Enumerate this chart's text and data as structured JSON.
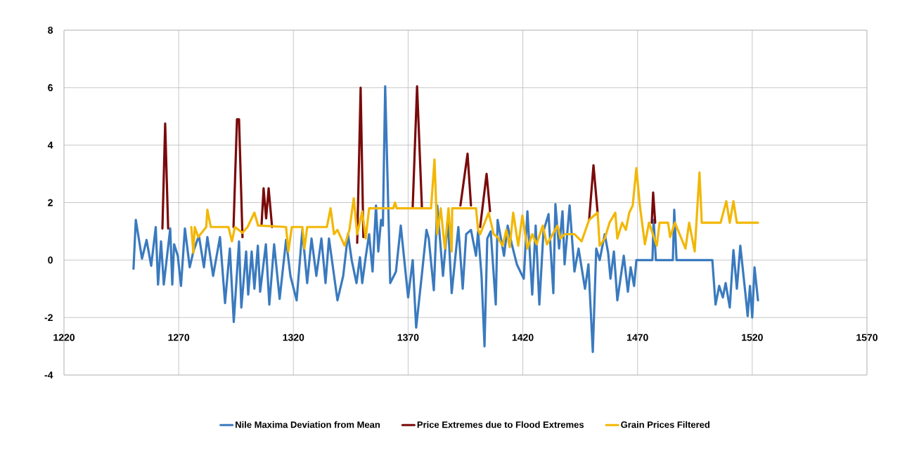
{
  "chart_data": {
    "type": "line",
    "xlim": [
      1220,
      1570
    ],
    "ylim": [
      -4,
      8
    ],
    "xticks": [
      1220,
      1270,
      1320,
      1370,
      1420,
      1470,
      1520,
      1570
    ],
    "yticks": [
      -4,
      -2,
      0,
      2,
      4,
      6,
      8
    ],
    "grid": true,
    "legend": "bottom",
    "series": [
      {
        "name": "Nile Maxima Deviation from Mean",
        "color": "#3a7abf",
        "x": [
          1250.3,
          1251.3,
          1254,
          1256,
          1258,
          1260,
          1261,
          1262.3,
          1263.5,
          1266.3,
          1267.2,
          1268,
          1269.6,
          1271,
          1272.7,
          1274.8,
          1276.4,
          1278.8,
          1281,
          1282.5,
          1285,
          1288,
          1290.2,
          1292.3,
          1294,
          1296.3,
          1297.3,
          1299.4,
          1300.3,
          1301.8,
          1303,
          1304.5,
          1305.5,
          1308,
          1309.5,
          1311.6,
          1314,
          1316.8,
          1318.7,
          1321.4,
          1323.9,
          1326,
          1327.9,
          1330,
          1332.2,
          1334,
          1335.5,
          1339.2,
          1341.7,
          1343.8,
          1345.4,
          1347.5,
          1349,
          1350,
          1351.5,
          1353,
          1354.5,
          1356,
          1357,
          1358.2,
          1359,
          1360,
          1362.2,
          1364.7,
          1366.8,
          1370,
          1372,
          1373.5,
          1376,
          1378,
          1379,
          1381.2,
          1382.7,
          1385.2,
          1387.3,
          1389,
          1391.9,
          1393.8,
          1395.3,
          1397.4,
          1399.6,
          1400.5,
          1402,
          1403.3,
          1404.5,
          1406,
          1408.2,
          1409,
          1411.8,
          1413.4,
          1415.2,
          1417.4,
          1418.9,
          1420.4,
          1422,
          1424.1,
          1425.6,
          1427.2,
          1429,
          1431.2,
          1433.3,
          1434.2,
          1435.8,
          1437.3,
          1438.2,
          1440.4,
          1442.5,
          1444.3,
          1447.1,
          1448.6,
          1450.5,
          1452,
          1453.5,
          1455.7,
          1457.2,
          1458.2,
          1459.7,
          1461.2,
          1464,
          1465.8,
          1467,
          1468.5,
          1469.5,
          1476.5,
          1477,
          1478,
          1485.4,
          1486,
          1487,
          1502.6,
          1504,
          1505.6,
          1507.2,
          1508.4,
          1510.2,
          1511.8,
          1513.3,
          1514.8,
          1517,
          1518,
          1519,
          1520,
          1521,
          1522.5
        ],
        "values": [
          -0.3,
          1.4,
          0.05,
          0.7,
          -0.2,
          1.15,
          -0.85,
          0.65,
          -0.85,
          1.1,
          -0.85,
          0.55,
          0.15,
          -0.9,
          1.1,
          -0.25,
          0.3,
          0.85,
          -0.25,
          0.8,
          -0.55,
          0.8,
          -1.5,
          0.4,
          -2.15,
          0.65,
          -1.65,
          0.3,
          -1.2,
          0.3,
          -1,
          0.5,
          -1.1,
          0.55,
          -1.55,
          0.55,
          -1.35,
          0.7,
          -0.55,
          -1.4,
          1.05,
          -0.8,
          0.75,
          -0.55,
          0.75,
          -0.8,
          0.75,
          -1.4,
          -0.55,
          0.9,
          0,
          -0.8,
          0.1,
          -0.8,
          0.1,
          0.9,
          -0.4,
          1.9,
          0.3,
          1.4,
          1.2,
          6.05,
          -0.8,
          -0.4,
          1.2,
          -1.3,
          0,
          -2.35,
          -0.5,
          1.05,
          0.75,
          -1.05,
          1.9,
          -0.55,
          1.4,
          -1.15,
          1.15,
          -1,
          0.9,
          1.05,
          0.15,
          1,
          -0.55,
          -3,
          0.75,
          1,
          -1.55,
          1.4,
          0.15,
          1.2,
          0.55,
          -0.15,
          -0.4,
          -0.65,
          1.7,
          -1.2,
          1.2,
          -1.55,
          1,
          1.6,
          -1.15,
          1.95,
          0.4,
          1.7,
          -0.15,
          1.9,
          -0.4,
          0.4,
          -1,
          -0.15,
          -3.2,
          0.4,
          0,
          0.9,
          0.25,
          -0.65,
          0.3,
          -1.4,
          0.15,
          -1.1,
          -0.25,
          -0.9,
          0,
          0,
          1.4,
          0,
          0,
          1.75,
          0,
          0,
          -1.55,
          -0.9,
          -1.3,
          -0.8,
          -1.65,
          0.35,
          -1,
          0.5,
          -1.15,
          -1.95,
          -0.9,
          -2,
          -0.25,
          -1.4
        ]
      },
      {
        "name": "Price Extremes due to Flood Extremes",
        "color": "#7a0a0a",
        "x": [
          1262.9,
          1264.1,
          1265.4,
          1280,
          1293.9,
          1295.4,
          1296.3,
          1297.8,
          1300,
          1306.1,
          1307,
          1308.1,
          1309.2,
          1310.7,
          1330,
          1347.8,
          1349.3,
          1350.5,
          1360,
          1372,
          1373.9,
          1376,
          1385,
          1392.8,
          1395.9,
          1397.4,
          1399,
          1401.4,
          1404.2,
          1405.7,
          1430,
          1448.9,
          1450.8,
          1452.6,
          1465,
          1476.2,
          1476.8,
          1477.7
        ],
        "values": [
          1.1,
          4.75,
          1.1,
          null,
          1.15,
          4.9,
          4.9,
          0.8,
          null,
          1.2,
          2.5,
          1.45,
          2.5,
          1.15,
          null,
          0.6,
          6,
          0.8,
          null,
          1.85,
          6.05,
          1.85,
          null,
          1.9,
          3.7,
          1.9,
          null,
          1.15,
          3,
          1.7,
          null,
          1.4,
          3.3,
          1.65,
          null,
          1.3,
          2.35,
          1.3
        ]
      },
      {
        "name": "Grain Prices Filtered",
        "color": "#f2b705",
        "x": [
          1275.5,
          1276.4,
          1277,
          1278.5,
          1282,
          1282.5,
          1284,
          1291.7,
          1293.2,
          1294.5,
          1297.8,
          1300,
          1303,
          1304.6,
          1316.8,
          1317.8,
          1319.3,
          1323.9,
          1324.8,
          1326,
          1334.6,
          1336.2,
          1337.7,
          1339.2,
          1342.3,
          1344.4,
          1346.3,
          1347.8,
          1350,
          1351.5,
          1353,
          1354,
          1363.5,
          1364.3,
          1365,
          1380,
          1381.5,
          1382.7,
          1384.2,
          1386,
          1387.6,
          1389,
          1389.2,
          1399.6,
          1400.5,
          1401.4,
          1405.1,
          1407.3,
          1409,
          1411.2,
          1412.8,
          1414.3,
          1415.8,
          1418,
          1419.8,
          1422,
          1424.1,
          1426,
          1428.7,
          1430.5,
          1432,
          1435.1,
          1436.4,
          1438.2,
          1442.5,
          1445.6,
          1448.9,
          1452.6,
          1453.5,
          1455.7,
          1457.8,
          1460.3,
          1461.2,
          1463.3,
          1464.9,
          1466.4,
          1467.9,
          1469.5,
          1471,
          1473.2,
          1475,
          1478.4,
          1479.6,
          1483.3,
          1484.2,
          1486.3,
          1490.9,
          1492.5,
          1494.9,
          1497,
          1498,
          1506.2,
          1508.7,
          1510.2,
          1511.8,
          1513.3,
          1522.5
        ],
        "values": [
          1.15,
          0.25,
          1.15,
          0.8,
          1.15,
          1.75,
          1.15,
          1.15,
          0.65,
          1.15,
          0.95,
          1.15,
          1.65,
          1.2,
          1.15,
          0.3,
          1.15,
          1.15,
          0.4,
          1.15,
          1.15,
          1.8,
          0.9,
          1.05,
          0.5,
          1.05,
          2.15,
          0.9,
          1.7,
          0.75,
          1.8,
          1.8,
          1.8,
          2,
          1.8,
          1.8,
          3.5,
          0.9,
          1.8,
          0.4,
          1.8,
          0.3,
          1.8,
          1.8,
          1.05,
          0.9,
          1.65,
          0.9,
          0.8,
          0.5,
          1.05,
          0.45,
          1.65,
          0.5,
          1.55,
          0.4,
          0.9,
          0.55,
          1.2,
          0.55,
          0.75,
          1.2,
          0.75,
          0.9,
          0.9,
          0.65,
          1.4,
          1.65,
          0.5,
          0.75,
          1.3,
          1.65,
          0.75,
          1.3,
          1.05,
          1.65,
          1.9,
          3.2,
          1.9,
          0.55,
          1.3,
          0.5,
          1.3,
          1.3,
          0.8,
          1.3,
          0.4,
          1.3,
          0.3,
          3.05,
          1.3,
          1.3,
          2.05,
          1.3,
          2.05,
          1.3,
          1.3
        ]
      }
    ]
  }
}
